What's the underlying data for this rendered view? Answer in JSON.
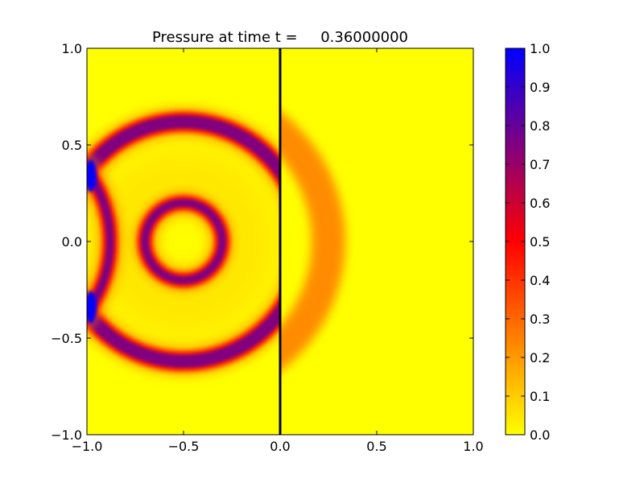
{
  "chart_data": {
    "type": "heatmap",
    "title": "Pressure at time t =     0.36000000",
    "colormap": [
      "#ffff00",
      "#ff8000",
      "#ff0000",
      "#800080",
      "#0000ff"
    ],
    "xlim": [
      -1.0,
      1.0
    ],
    "ylim": [
      -1.0,
      1.0
    ],
    "x_ticks": [
      -1.0,
      -0.5,
      0.0,
      0.5,
      1.0
    ],
    "y_ticks": [
      -1.0,
      -0.5,
      0.0,
      0.5,
      1.0
    ],
    "x_tick_labels": [
      "−1.0",
      "−0.5",
      "0.0",
      "0.5",
      "1.0"
    ],
    "y_tick_labels": [
      "−1.0",
      "−0.5",
      "0.0",
      "0.5",
      "1.0"
    ],
    "colorbar": {
      "range": [
        0.0,
        1.0
      ],
      "ticks": [
        0.0,
        0.1,
        0.2,
        0.3,
        0.4,
        0.5,
        0.6,
        0.7,
        0.8,
        0.9,
        1.0
      ],
      "tick_labels": [
        "0.0",
        "0.1",
        "0.2",
        "0.3",
        "0.4",
        "0.5",
        "0.6",
        "0.7",
        "0.8",
        "0.9",
        "1.0"
      ]
    },
    "interface": {
      "x": 0.0,
      "color": "#000000"
    },
    "features": [
      {
        "kind": "ring",
        "center": [
          -0.5,
          0.0
        ],
        "radius": 0.62,
        "peak_value": 0.75,
        "clip_x_max": 0.0
      },
      {
        "kind": "ring",
        "center": [
          -0.5,
          0.0
        ],
        "radius": 0.2,
        "peak_value": 0.7
      },
      {
        "kind": "transmitted-ring",
        "center": [
          -0.5,
          0.0
        ],
        "radius": 0.75,
        "peak_value": 0.35,
        "clip_x_min": 0.0
      },
      {
        "kind": "reflected-ring",
        "center": [
          -1.5,
          0.0
        ],
        "radius": 0.62,
        "peak_value": 0.75
      },
      {
        "kind": "high-pressure-spot",
        "center": [
          -0.98,
          0.34
        ],
        "peak_value": 1.0
      },
      {
        "kind": "high-pressure-spot",
        "center": [
          -0.98,
          -0.34
        ],
        "peak_value": 1.0
      }
    ]
  }
}
